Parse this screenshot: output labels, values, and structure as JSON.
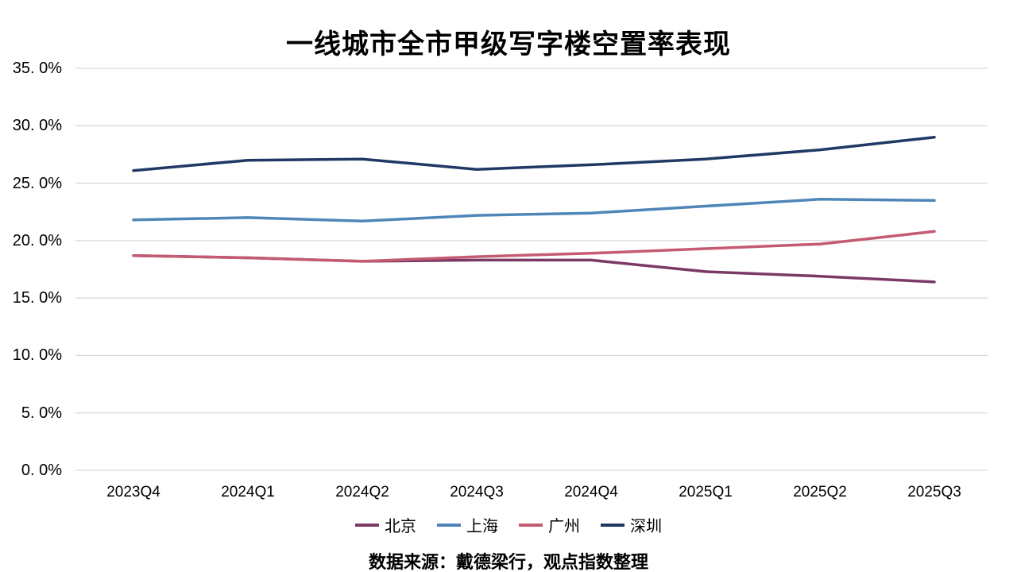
{
  "title": "一线城市全市甲级写字楼空置率表现",
  "source_note": "数据来源：戴德梁行，观点指数整理",
  "colors": {
    "grid": "#d9d9d9",
    "background": "#ffffff",
    "beijing": "#7b3a64",
    "shanghai": "#4e86b8",
    "guangzhou": "#c45b72",
    "shenzhen": "#1f3864"
  },
  "chart_data": {
    "type": "line",
    "title": "一线城市全市甲级写字楼空置率表现",
    "categories": [
      "2023Q4",
      "2024Q1",
      "2024Q2",
      "2024Q3",
      "2024Q4",
      "2025Q1",
      "2025Q2",
      "2025Q3"
    ],
    "series": [
      {
        "name": "北京",
        "id": "beijing",
        "color": "#7b3a64",
        "values": [
          18.7,
          18.5,
          18.2,
          18.3,
          18.3,
          17.3,
          16.9,
          16.4
        ]
      },
      {
        "name": "上海",
        "id": "shanghai",
        "color": "#4e86b8",
        "values": [
          21.8,
          22.0,
          21.7,
          22.2,
          22.4,
          23.0,
          23.6,
          23.5
        ]
      },
      {
        "name": "广州",
        "id": "guangzhou",
        "color": "#c45b72",
        "values": [
          18.7,
          18.5,
          18.2,
          18.6,
          18.9,
          19.3,
          19.7,
          20.8
        ]
      },
      {
        "name": "深圳",
        "id": "shenzhen",
        "color": "#1f3864",
        "values": [
          26.1,
          27.0,
          27.1,
          26.2,
          26.6,
          27.1,
          27.9,
          29.0
        ]
      }
    ],
    "xlabel": "",
    "ylabel": "",
    "ylim": [
      0,
      35
    ],
    "ytick_step": 5,
    "ytick_labels": [
      "0. 0%",
      "5. 0%",
      "10. 0%",
      "15. 0%",
      "20. 0%",
      "25. 0%",
      "30. 0%",
      "35. 0%"
    ],
    "grid": "horizontal-only",
    "legend_position": "bottom-center",
    "line_width": 3.5
  }
}
